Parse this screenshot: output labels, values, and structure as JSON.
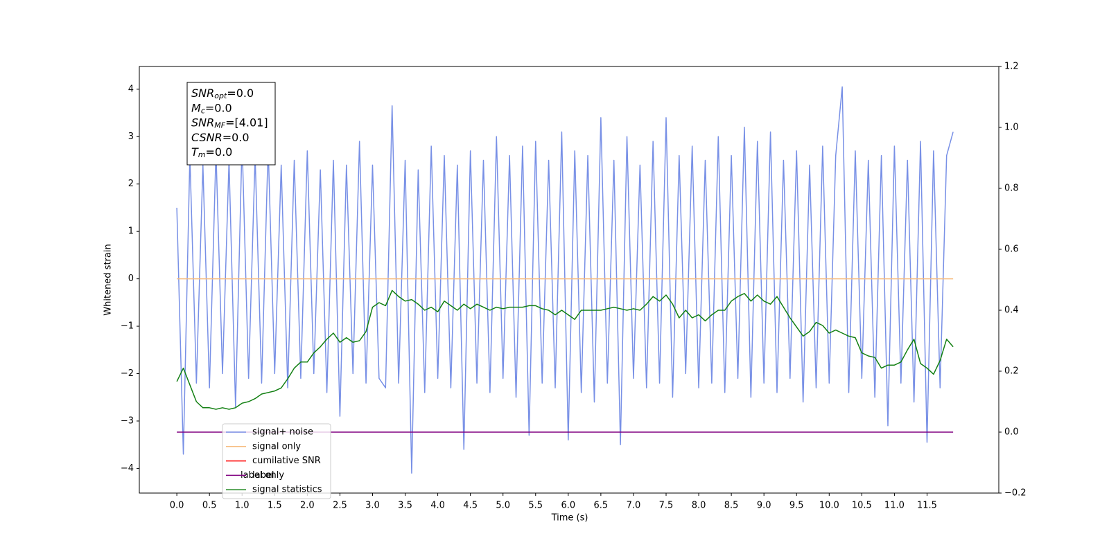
{
  "chart_data": {
    "type": "line",
    "x_label": "Time (s)",
    "y_label": "Whitened strain",
    "xlim": [
      -0.575,
      12.6
    ],
    "ylim": [
      -4.52,
      4.48
    ],
    "y2lim": [
      -0.2,
      1.2
    ],
    "xticks": [
      {
        "value": 0,
        "label": "0.0"
      },
      {
        "value": 0.5,
        "label": "0.5"
      },
      {
        "value": 1,
        "label": "1.0"
      },
      {
        "value": 1.5,
        "label": "1.5"
      },
      {
        "value": 2,
        "label": "2.0"
      },
      {
        "value": 2.5,
        "label": "2.5"
      },
      {
        "value": 3,
        "label": "3.0"
      },
      {
        "value": 3.5,
        "label": "3.5"
      },
      {
        "value": 4,
        "label": "4.0"
      },
      {
        "value": 4.5,
        "label": "4.5"
      },
      {
        "value": 5,
        "label": "5.0"
      },
      {
        "value": 5.5,
        "label": "5.5"
      },
      {
        "value": 6,
        "label": "6.0"
      },
      {
        "value": 6.5,
        "label": "6.5"
      },
      {
        "value": 7,
        "label": "7.0"
      },
      {
        "value": 7.5,
        "label": "7.5"
      },
      {
        "value": 8,
        "label": "8.0"
      },
      {
        "value": 8.5,
        "label": "8.5"
      },
      {
        "value": 9,
        "label": "9.0"
      },
      {
        "value": 9.5,
        "label": "9.5"
      },
      {
        "value": 10,
        "label": "10.0"
      },
      {
        "value": 10.5,
        "label": "10.5"
      },
      {
        "value": 11,
        "label": "11.0"
      },
      {
        "value": 11.5,
        "label": "11.5"
      }
    ],
    "yticks": [
      {
        "value": -4,
        "label": "−4"
      },
      {
        "value": -3,
        "label": "−3"
      },
      {
        "value": -2,
        "label": "−2"
      },
      {
        "value": -1,
        "label": "−1"
      },
      0,
      1,
      2,
      3,
      4
    ],
    "y2ticks": [
      {
        "value": -0.2,
        "label": "−0.2"
      },
      {
        "value": 0,
        "label": "0.0"
      },
      0.2,
      0.4,
      0.6,
      0.8,
      {
        "value": 1,
        "label": "1.0"
      },
      1.2
    ],
    "annotations": [
      {
        "name": "SNR",
        "sub": "opt",
        "text": "=0.0"
      },
      {
        "name": "M",
        "sub": "c",
        "text": "=0.0"
      },
      {
        "name": "SNR",
        "sub": "MF",
        "text": "=[4.01]"
      },
      {
        "name": "CSNR",
        "text": "=0.0"
      },
      {
        "name": "T",
        "sub": "m",
        "text": "=0.0"
      }
    ],
    "x": [
      0,
      0.1,
      0.2,
      0.3,
      0.4,
      0.5,
      0.6,
      0.7,
      0.8,
      0.9,
      1,
      1.1,
      1.2,
      1.3,
      1.4,
      1.5,
      1.6,
      1.7,
      1.8,
      1.9,
      2,
      2.1,
      2.2,
      2.3,
      2.4,
      2.5,
      2.6,
      2.7,
      2.8,
      2.9,
      3,
      3.1,
      3.2,
      3.3,
      3.4,
      3.5,
      3.6,
      3.7,
      3.8,
      3.9,
      4,
      4.1,
      4.2,
      4.3,
      4.4,
      4.5,
      4.6,
      4.7,
      4.8,
      4.9,
      5,
      5.1,
      5.2,
      5.3,
      5.4,
      5.5,
      5.6,
      5.7,
      5.8,
      5.9,
      6,
      6.1,
      6.2,
      6.3,
      6.4,
      6.5,
      6.6,
      6.7,
      6.8,
      6.9,
      7,
      7.1,
      7.2,
      7.3,
      7.4,
      7.5,
      7.6,
      7.7,
      7.8,
      7.9,
      8,
      8.1,
      8.2,
      8.3,
      8.4,
      8.5,
      8.6,
      8.7,
      8.8,
      8.9,
      9,
      9.1,
      9.2,
      9.3,
      9.4,
      9.5,
      9.6,
      9.7,
      9.8,
      9.9,
      10,
      10.1,
      10.2,
      10.3,
      10.4,
      10.5,
      10.6,
      10.7,
      10.8,
      10.9,
      11,
      11.1,
      11.2,
      11.3,
      11.4,
      11.5,
      11.6,
      11.7,
      11.8,
      11.9
    ],
    "series": [
      {
        "name": "signal+ noise",
        "color": "#7890e6",
        "values": [
          1.5,
          -3.7,
          2.6,
          -2.2,
          2.4,
          -2.3,
          2.7,
          -2,
          2.5,
          -2.7,
          2.9,
          -2.1,
          2.6,
          -2.2,
          2.8,
          -2,
          2.4,
          -2.3,
          2.5,
          -2.1,
          2.7,
          -2,
          2.3,
          -2.4,
          2.5,
          -2.9,
          2.4,
          -2,
          2.9,
          -2.2,
          2.4,
          -2.1,
          -2.3,
          3.65,
          -2.2,
          2.5,
          -4.1,
          2.3,
          -2.4,
          2.8,
          -2.1,
          2.6,
          -2.3,
          2.4,
          -3.6,
          2.7,
          -2.2,
          2.5,
          -2.4,
          3,
          -2.1,
          2.6,
          -2.5,
          2.8,
          -3.3,
          2.9,
          -2.2,
          2.5,
          -2.3,
          3.1,
          -3.4,
          2.7,
          -2.4,
          2.6,
          -2.6,
          3.4,
          -2.2,
          2.5,
          -3.5,
          3,
          -2.1,
          2.4,
          -2.3,
          2.9,
          -2.2,
          3.4,
          -2.5,
          2.6,
          -2,
          2.8,
          -2.3,
          2.5,
          -2.2,
          3,
          -2.4,
          2.6,
          -2.1,
          3.2,
          -2.5,
          2.9,
          -2.2,
          3.1,
          -2.4,
          2.5,
          -2.1,
          2.7,
          -2.6,
          2.4,
          -2.3,
          2.8,
          -2.2,
          2.6,
          4.05,
          -2.4,
          2.7,
          -2.1,
          2.5,
          -2.5,
          2.6,
          -3.1,
          2.8,
          -2.2,
          2.5,
          -2.6,
          2.9,
          -3.45,
          2.7,
          -2.3,
          2.6,
          3.1
        ]
      },
      {
        "name": "signal only",
        "color": "#f7bc80",
        "values": [
          0,
          0,
          0,
          0,
          0,
          0,
          0,
          0,
          0,
          0,
          0,
          0,
          0,
          0,
          0,
          0,
          0,
          0,
          0,
          0,
          0,
          0,
          0,
          0,
          0,
          0,
          0,
          0,
          0,
          0,
          0,
          0,
          0,
          0,
          0,
          0,
          0,
          0,
          0,
          0,
          0,
          0,
          0,
          0,
          0,
          0,
          0,
          0,
          0,
          0,
          0,
          0,
          0,
          0,
          0,
          0,
          0,
          0,
          0,
          0,
          0,
          0,
          0,
          0,
          0,
          0,
          0,
          0,
          0,
          0,
          0,
          0,
          0,
          0,
          0,
          0,
          0,
          0,
          0,
          0,
          0,
          0,
          0,
          0,
          0,
          0,
          0,
          0,
          0,
          0,
          0,
          0,
          0,
          0,
          0,
          0,
          0,
          0,
          0,
          0,
          0,
          0,
          0,
          0,
          0,
          0,
          0,
          0,
          0,
          0,
          0,
          0,
          0,
          0,
          0,
          0,
          0,
          0,
          0,
          0
        ]
      },
      {
        "name": "cumilative SNR",
        "color": "#ff0000"
      },
      {
        "name": "label",
        "color": "#800080",
        "axis": "y2",
        "values": [
          0,
          0,
          0,
          0,
          0,
          0,
          0,
          0,
          0,
          0,
          0,
          0,
          0,
          0,
          0,
          0,
          0,
          0,
          0,
          0,
          0,
          0,
          0,
          0,
          0,
          0,
          0,
          0,
          0,
          0,
          0,
          0,
          0,
          0,
          0,
          0,
          0,
          0,
          0,
          0,
          0,
          0,
          0,
          0,
          0,
          0,
          0,
          0,
          0,
          0,
          0,
          0,
          0,
          0,
          0,
          0,
          0,
          0,
          0,
          0,
          0,
          0,
          0,
          0,
          0,
          0,
          0,
          0,
          0,
          0,
          0,
          0,
          0,
          0,
          0,
          0,
          0,
          0,
          0,
          0,
          0,
          0,
          0,
          0,
          0,
          0,
          0,
          0,
          0,
          0,
          0,
          0,
          0,
          0,
          0,
          0,
          0,
          0,
          0,
          0,
          0,
          0,
          0,
          0,
          0,
          0,
          0,
          0,
          0,
          0,
          0,
          0,
          0,
          0,
          0,
          0,
          0,
          0,
          0,
          0
        ]
      },
      {
        "name": "signal statistics",
        "color": "#138013",
        "axis": "y2",
        "values": [
          0.166,
          0.21,
          0.155,
          0.1,
          0.08,
          0.08,
          0.075,
          0.08,
          0.075,
          0.08,
          0.095,
          0.1,
          0.11,
          0.125,
          0.13,
          0.135,
          0.145,
          0.175,
          0.21,
          0.23,
          0.23,
          0.26,
          0.28,
          0.305,
          0.325,
          0.295,
          0.31,
          0.295,
          0.3,
          0.33,
          0.41,
          0.425,
          0.415,
          0.465,
          0.445,
          0.43,
          0.435,
          0.42,
          0.4,
          0.41,
          0.395,
          0.43,
          0.415,
          0.4,
          0.42,
          0.405,
          0.42,
          0.41,
          0.4,
          0.41,
          0.405,
          0.41,
          0.41,
          0.41,
          0.415,
          0.415,
          0.405,
          0.4,
          0.385,
          0.4,
          0.385,
          0.37,
          0.4,
          0.4,
          0.4,
          0.4,
          0.405,
          0.41,
          0.405,
          0.4,
          0.405,
          0.4,
          0.42,
          0.445,
          0.43,
          0.45,
          0.42,
          0.375,
          0.4,
          0.375,
          0.385,
          0.365,
          0.385,
          0.4,
          0.4,
          0.43,
          0.445,
          0.455,
          0.43,
          0.45,
          0.43,
          0.42,
          0.445,
          0.41,
          0.375,
          0.345,
          0.315,
          0.33,
          0.36,
          0.35,
          0.325,
          0.335,
          0.325,
          0.315,
          0.31,
          0.26,
          0.25,
          0.245,
          0.21,
          0.22,
          0.22,
          0.23,
          0.27,
          0.305,
          0.225,
          0.21,
          0.19,
          0.235,
          0.305,
          0.28
        ]
      }
    ],
    "hidden_legend_text": "label only"
  }
}
